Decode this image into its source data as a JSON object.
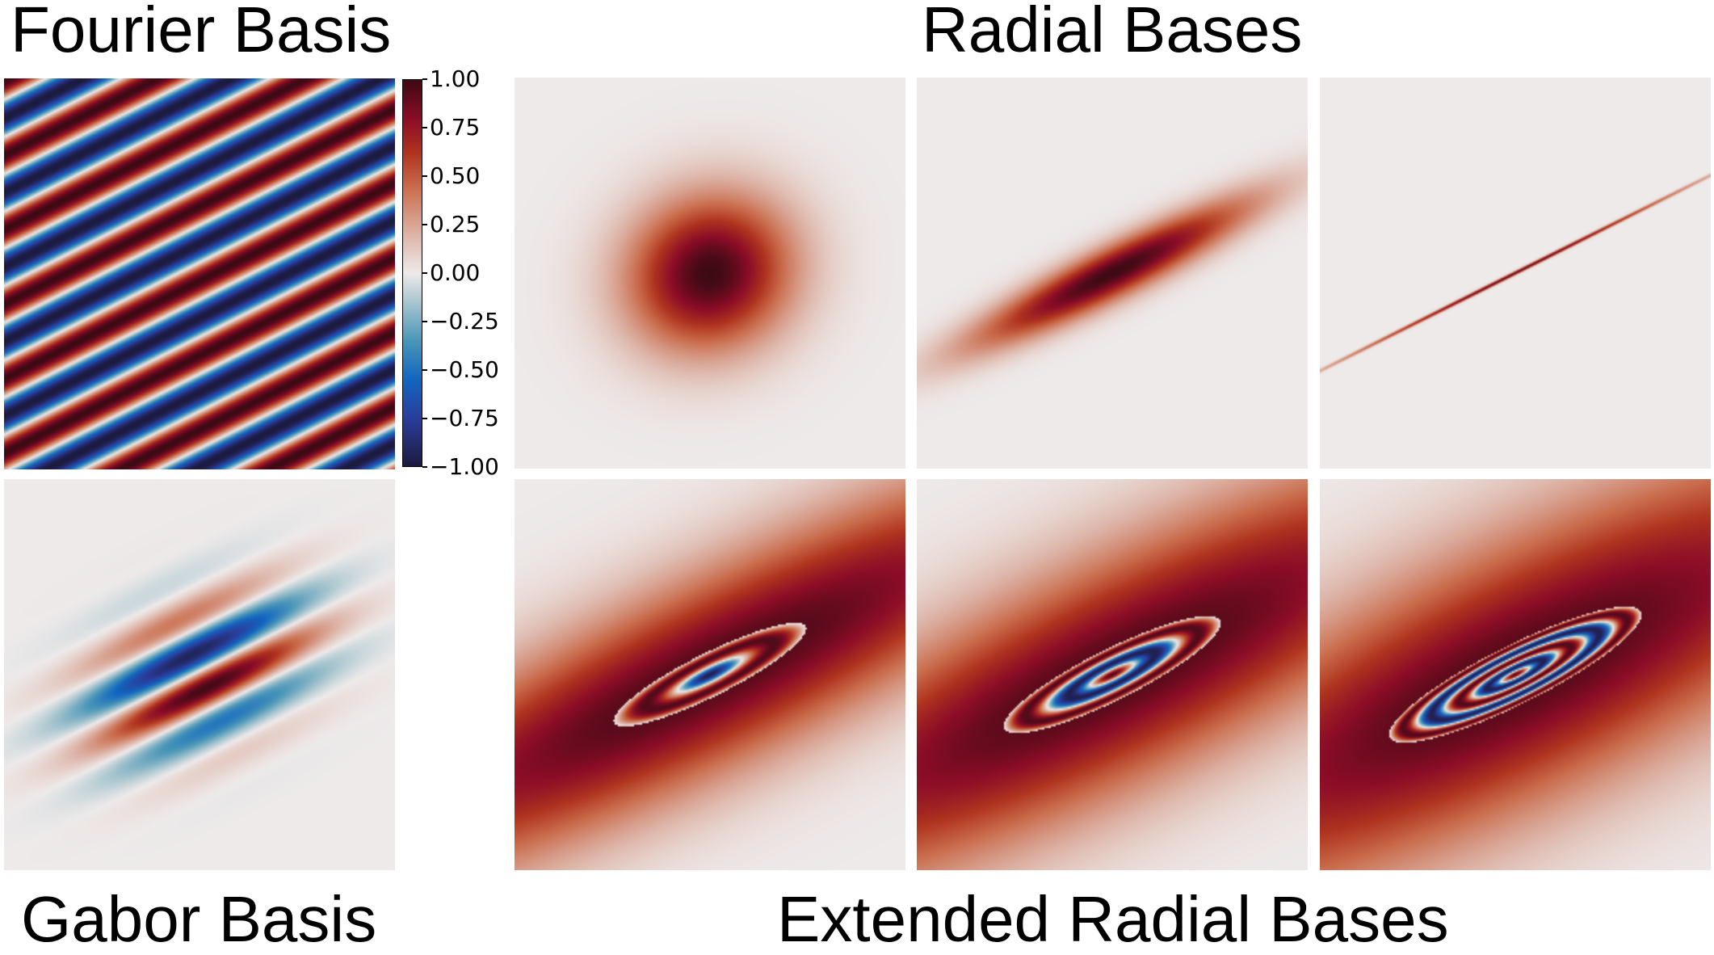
{
  "titles": {
    "fourier": "Fourier Basis",
    "radial": "Radial Bases",
    "gabor": "Gabor Basis",
    "extended": "Extended Radial Bases"
  },
  "colorbar": {
    "ticks": [
      "1.00",
      "0.75",
      "0.50",
      "0.25",
      "0.00",
      "−0.25",
      "−0.50",
      "−0.75",
      "−1.00"
    ],
    "range": [
      -1.0,
      1.0
    ],
    "colormap_stops": [
      {
        "v": -1.0,
        "color": "#1c1a3e"
      },
      {
        "v": -0.75,
        "color": "#2a3e9c"
      },
      {
        "v": -0.55,
        "color": "#1266c0"
      },
      {
        "v": -0.35,
        "color": "#4a96b8"
      },
      {
        "v": -0.15,
        "color": "#a9c6cf"
      },
      {
        "v": 0.0,
        "color": "#eeeaea"
      },
      {
        "v": 0.2,
        "color": "#ddb3a6"
      },
      {
        "v": 0.45,
        "color": "#c96a4a"
      },
      {
        "v": 0.62,
        "color": "#b0341f"
      },
      {
        "v": 0.8,
        "color": "#8b0c27"
      },
      {
        "v": 1.0,
        "color": "#3d0a14"
      }
    ]
  },
  "chart_data": {
    "type": "heatmap",
    "title": "Fourier / Gabor / Radial / Extended Radial Bases",
    "value_range": [
      -1.0,
      1.0
    ],
    "colorbar_ticks": [
      1.0,
      0.75,
      0.5,
      0.25,
      0.0,
      -0.25,
      -0.5,
      -0.75,
      -1.0
    ],
    "panels": [
      {
        "id": "fourier",
        "label": "Fourier Basis",
        "kind": "fourier",
        "angle_deg": -26.6,
        "periods": 6.5
      },
      {
        "id": "gabor",
        "label": "Gabor Basis",
        "kind": "gabor",
        "angle_deg": -26.6,
        "periods": 9,
        "sigma_major": 0.42,
        "sigma_minor": 0.22
      },
      {
        "id": "radial-1",
        "label": "Radial Bases",
        "kind": "radial",
        "angle_deg": -26.6,
        "sigma_major": 0.3,
        "sigma_minor": 0.27
      },
      {
        "id": "radial-2",
        "label": "Radial Bases",
        "kind": "radial",
        "angle_deg": -26.6,
        "sigma_major": 0.55,
        "sigma_minor": 0.09
      },
      {
        "id": "radial-3",
        "label": "Radial Bases",
        "kind": "radial",
        "angle_deg": -26.6,
        "sigma_major": 1.6,
        "sigma_minor": 0.004
      },
      {
        "id": "ext-1",
        "label": "Extended Radial Bases",
        "kind": "extended",
        "angle_deg": -26.6,
        "rings": 1,
        "ring_radius": 0.55,
        "major": 0.55,
        "minor": 0.11
      },
      {
        "id": "ext-2",
        "label": "Extended Radial Bases",
        "kind": "extended",
        "angle_deg": -26.6,
        "rings": 2,
        "ring_radius": 0.62,
        "major": 0.62,
        "minor": 0.13
      },
      {
        "id": "ext-3",
        "label": "Extended Radial Bases",
        "kind": "extended",
        "angle_deg": -26.6,
        "rings": 4,
        "ring_radius": 0.72,
        "major": 0.72,
        "minor": 0.15
      }
    ]
  }
}
